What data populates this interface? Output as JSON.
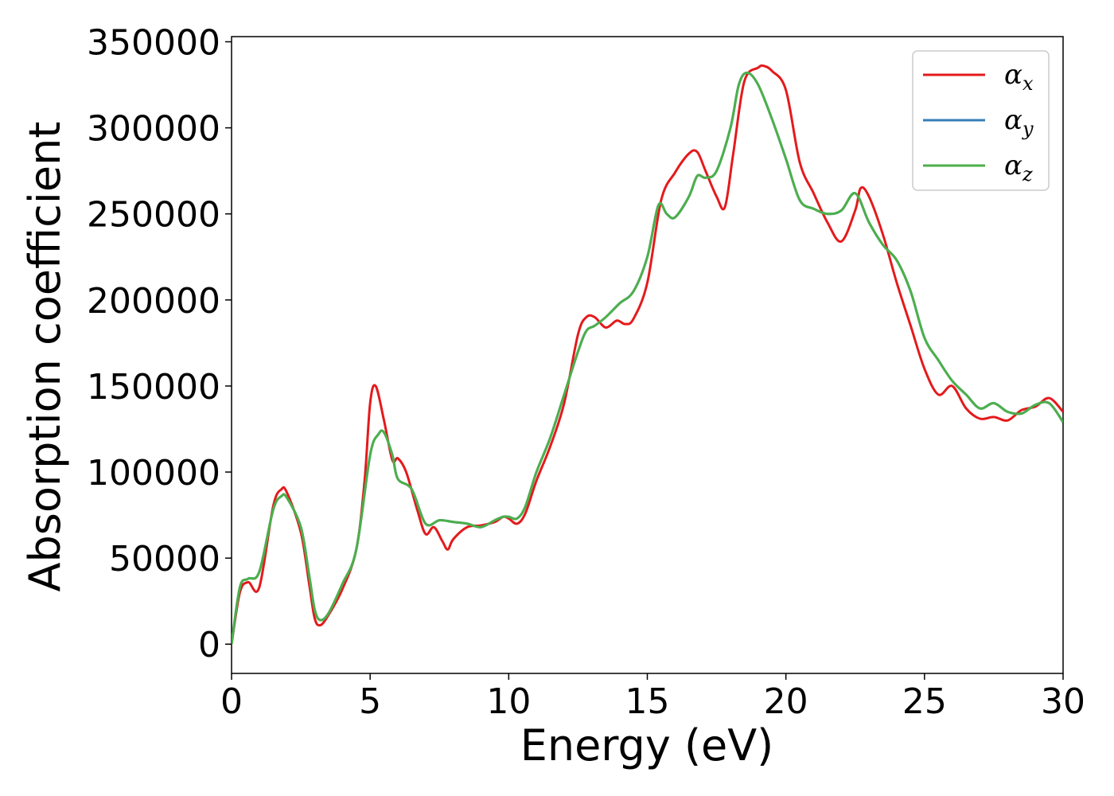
{
  "chart_data": {
    "type": "line",
    "title": "",
    "xlabel": "Energy (eV)",
    "ylabel": "Absorption coefficient",
    "xlim": [
      0,
      30
    ],
    "ylim": [
      -17000,
      353000
    ],
    "xticks": [
      0,
      5,
      10,
      15,
      20,
      25,
      30
    ],
    "xtick_labels": [
      "0",
      "5",
      "10",
      "15",
      "20",
      "25",
      "30"
    ],
    "yticks": [
      0,
      50000,
      100000,
      150000,
      200000,
      250000,
      300000,
      350000
    ],
    "ytick_labels": [
      "0",
      "50000",
      "100000",
      "150000",
      "200000",
      "250000",
      "300000",
      "350000"
    ],
    "grid": false,
    "legend_position": "top-right",
    "series": [
      {
        "name": "α_x",
        "label_main": "α",
        "label_sub": "x",
        "color": "#e41a1c",
        "x": [
          0,
          0.3,
          0.6,
          1.0,
          1.5,
          1.8,
          2.0,
          2.5,
          2.8,
          3.0,
          3.2,
          3.5,
          4.0,
          4.5,
          4.8,
          5.0,
          5.2,
          5.5,
          5.8,
          6.0,
          6.3,
          6.7,
          7.0,
          7.3,
          7.6,
          7.8,
          8.0,
          8.5,
          9.0,
          9.5,
          9.8,
          10.0,
          10.3,
          10.6,
          11.0,
          11.5,
          12.0,
          12.5,
          12.8,
          13.1,
          13.5,
          13.9,
          14.2,
          14.5,
          15.0,
          15.5,
          16.0,
          16.5,
          16.8,
          17.1,
          17.5,
          17.8,
          18.1,
          18.5,
          19.0,
          19.2,
          19.5,
          20.0,
          20.5,
          21.0,
          21.5,
          22.0,
          22.5,
          22.7,
          23.0,
          23.5,
          24.0,
          24.5,
          25.0,
          25.5,
          26.0,
          26.5,
          27.0,
          27.5,
          28.0,
          28.5,
          29.0,
          29.5,
          30.0
        ],
        "y": [
          0,
          30000,
          36000,
          33000,
          80000,
          90000,
          88000,
          65000,
          35000,
          15000,
          11000,
          17000,
          32000,
          55000,
          95000,
          140000,
          150000,
          130000,
          107000,
          108000,
          100000,
          78000,
          64000,
          68000,
          60000,
          55000,
          61000,
          68000,
          69000,
          71000,
          74000,
          73000,
          70000,
          76000,
          95000,
          115000,
          140000,
          180000,
          190000,
          190000,
          184000,
          188000,
          186000,
          189000,
          210000,
          258000,
          274000,
          285000,
          286000,
          275000,
          260000,
          254000,
          285000,
          327000,
          335000,
          336000,
          333000,
          322000,
          280000,
          262000,
          245000,
          234000,
          252000,
          265000,
          260000,
          238000,
          210000,
          185000,
          160000,
          145000,
          150000,
          137000,
          131000,
          132000,
          130000,
          136000,
          138000,
          143000,
          135000
        ]
      },
      {
        "name": "α_y",
        "label_main": "α",
        "label_sub": "y",
        "color": "#377eb8",
        "x": [
          0,
          0.3,
          0.6,
          1.0,
          1.5,
          1.8,
          2.0,
          2.5,
          2.8,
          3.0,
          3.2,
          3.5,
          4.0,
          4.5,
          5.0,
          5.3,
          5.5,
          5.8,
          6.0,
          6.5,
          7.0,
          7.5,
          8.0,
          8.5,
          9.0,
          9.5,
          9.8,
          10.0,
          10.3,
          10.6,
          11.0,
          11.5,
          12.0,
          12.5,
          12.8,
          13.1,
          13.5,
          14.0,
          14.5,
          15.0,
          15.4,
          15.7,
          16.0,
          16.5,
          16.8,
          17.1,
          17.5,
          18.0,
          18.3,
          18.6,
          19.0,
          19.5,
          20.0,
          20.5,
          21.0,
          21.5,
          22.0,
          22.5,
          23.0,
          23.5,
          24.0,
          24.5,
          25.0,
          25.5,
          26.0,
          26.5,
          27.0,
          27.5,
          28.0,
          28.5,
          29.0,
          29.5,
          30.0
        ],
        "y": [
          0,
          33000,
          38000,
          42000,
          78000,
          86000,
          85000,
          68000,
          40000,
          20000,
          14000,
          18000,
          35000,
          55000,
          110000,
          122000,
          123000,
          110000,
          96000,
          90000,
          70000,
          72000,
          71000,
          70000,
          68000,
          72000,
          74000,
          74000,
          73000,
          80000,
          100000,
          120000,
          145000,
          170000,
          182000,
          185000,
          190000,
          198000,
          205000,
          225000,
          255000,
          250000,
          248000,
          260000,
          272000,
          271000,
          275000,
          300000,
          325000,
          332000,
          325000,
          305000,
          282000,
          258000,
          253000,
          250000,
          252000,
          262000,
          245000,
          232000,
          223000,
          205000,
          178000,
          165000,
          153000,
          145000,
          137000,
          140000,
          135000,
          134000,
          139000,
          140000,
          129000
        ]
      },
      {
        "name": "α_z",
        "label_main": "α",
        "label_sub": "z",
        "color": "#4daf4a",
        "x": [
          0,
          0.3,
          0.6,
          1.0,
          1.5,
          1.8,
          2.0,
          2.5,
          2.8,
          3.0,
          3.2,
          3.5,
          4.0,
          4.5,
          5.0,
          5.3,
          5.5,
          5.8,
          6.0,
          6.5,
          7.0,
          7.5,
          8.0,
          8.5,
          9.0,
          9.5,
          9.8,
          10.0,
          10.3,
          10.6,
          11.0,
          11.5,
          12.0,
          12.5,
          12.8,
          13.1,
          13.5,
          14.0,
          14.5,
          15.0,
          15.4,
          15.7,
          16.0,
          16.5,
          16.8,
          17.1,
          17.5,
          18.0,
          18.3,
          18.6,
          19.0,
          19.5,
          20.0,
          20.5,
          21.0,
          21.5,
          22.0,
          22.5,
          23.0,
          23.5,
          24.0,
          24.5,
          25.0,
          25.5,
          26.0,
          26.5,
          27.0,
          27.5,
          28.0,
          28.5,
          29.0,
          29.5,
          30.0
        ],
        "y": [
          0,
          33000,
          38000,
          42000,
          78000,
          86000,
          85000,
          68000,
          40000,
          20000,
          14000,
          18000,
          35000,
          55000,
          110000,
          122000,
          123000,
          110000,
          96000,
          90000,
          70000,
          72000,
          71000,
          70000,
          68000,
          72000,
          74000,
          74000,
          73000,
          80000,
          100000,
          120000,
          145000,
          170000,
          182000,
          185000,
          190000,
          198000,
          205000,
          225000,
          255000,
          250000,
          248000,
          260000,
          272000,
          271000,
          275000,
          300000,
          325000,
          332000,
          325000,
          305000,
          282000,
          258000,
          253000,
          250000,
          252000,
          262000,
          245000,
          232000,
          223000,
          205000,
          178000,
          165000,
          153000,
          145000,
          137000,
          140000,
          135000,
          134000,
          139000,
          140000,
          129000
        ]
      }
    ]
  }
}
